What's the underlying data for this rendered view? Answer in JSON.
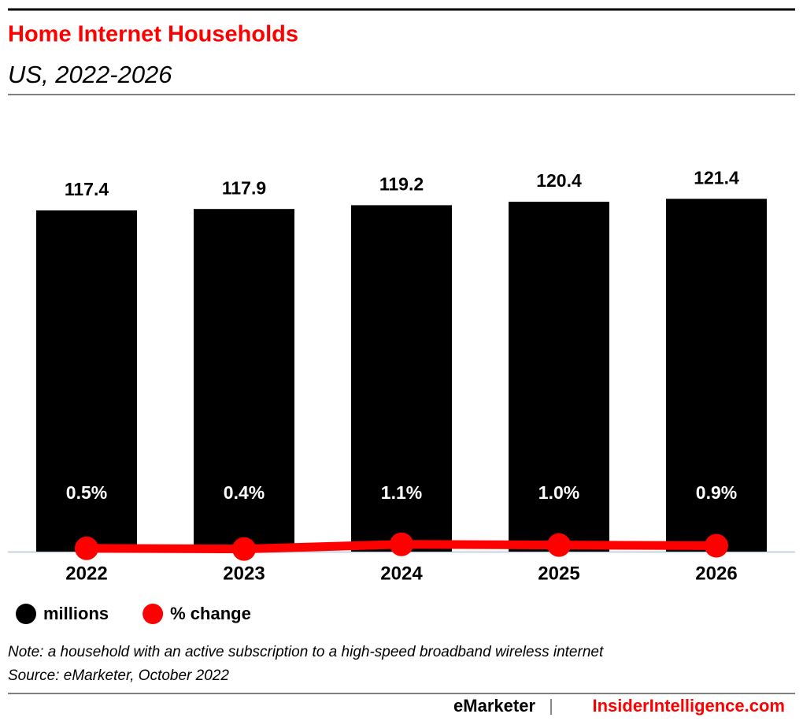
{
  "chart_data": {
    "type": "bar",
    "title": "Home Internet Households",
    "subtitle": "US, 2022-2026",
    "categories": [
      "2022",
      "2023",
      "2024",
      "2025",
      "2026"
    ],
    "series": [
      {
        "name": "millions",
        "color": "#000000",
        "values": [
          117.4,
          117.9,
          119.2,
          120.4,
          121.4
        ]
      },
      {
        "name": "% change",
        "color": "#ff0000",
        "type": "line",
        "axis": "y2",
        "values": [
          0.5,
          0.4,
          1.1,
          1.0,
          0.9
        ],
        "value_labels": [
          "0.5%",
          "0.4%",
          "1.1%",
          "1.0%",
          "0.9%"
        ]
      }
    ],
    "ylim": [
      0,
      125
    ],
    "y2lim": [
      0,
      55
    ],
    "note": "Note: a household with an active subscription to a high-speed broadband wireless internet",
    "source": "Source: eMarketer, October 2022",
    "footer": [
      "eMarketer",
      "InsiderIntelligence.com"
    ]
  }
}
